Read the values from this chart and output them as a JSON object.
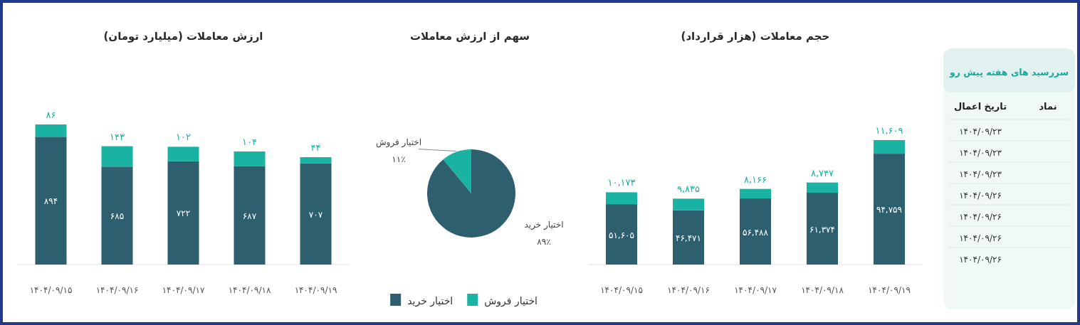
{
  "chart_data": [
    {
      "type": "other",
      "title": "سررسید های هفته پیش رو",
      "categories": [
        "نماد",
        "تاریخ اعمال"
      ],
      "annotations": [
        "۱۴۰۴/۰۹/۲۳",
        "۱۴۰۴/۰۹/۲۳",
        "۱۴۰۴/۰۹/۲۳",
        "۱۴۰۴/۰۹/۲۶",
        "۱۴۰۴/۰۹/۲۶",
        "۱۴۰۴/۰۹/۲۶",
        "۱۴۰۴/۰۹/۲۶"
      ]
    },
    {
      "type": "bar",
      "title": "حجم معاملات (هزار قرارداد)",
      "stacked": true,
      "categories": [
        "۱۴۰۴/۰۹/۱۵",
        "۱۴۰۴/۰۹/۱۶",
        "۱۴۰۴/۰۹/۱۷",
        "۱۴۰۴/۰۹/۱۸",
        "۱۴۰۴/۰۹/۱۹"
      ],
      "series": [
        {
          "color": "#2d5f6e",
          "values": [
            51605,
            46471,
            56488,
            61374,
            94759
          ],
          "value_labels": [
            "۵۱,۶۰۵",
            "۴۶,۴۷۱",
            "۵۶,۴۸۸",
            "۶۱,۳۷۴",
            "۹۴,۷۵۹"
          ]
        },
        {
          "color": "#1ab3a3",
          "values": [
            10173,
            9835,
            8166,
            8747,
            11609
          ],
          "value_labels": [
            "۱۰,۱۷۳",
            "۹,۸۳۵",
            "۸,۱۶۶",
            "۸,۷۴۷",
            "۱۱,۶۰۹"
          ]
        }
      ]
    },
    {
      "type": "pie",
      "title": "سهم از ارزش معاملات",
      "legend": "bottom",
      "categories": [
        "اختیار فروش",
        "اختیار خرید"
      ],
      "values": [
        11,
        89
      ],
      "colors": [
        "#1ab3a3",
        "#2d5f6e"
      ],
      "value_labels": [
        "۱۱٪",
        "۸۹٪"
      ]
    },
    {
      "type": "bar",
      "title": "ارزش معاملات (میلیارد تومان)",
      "stacked": true,
      "categories": [
        "۱۴۰۴/۰۹/۱۵",
        "۱۴۰۴/۰۹/۱۶",
        "۱۴۰۴/۰۹/۱۷",
        "۱۴۰۴/۰۹/۱۸",
        "۱۴۰۴/۰۹/۱۹"
      ],
      "series": [
        {
          "color": "#2d5f6e",
          "values": [
            894,
            685,
            722,
            687,
            707
          ],
          "value_labels": [
            "۸۹۴",
            "۶۸۵",
            "۷۲۲",
            "۶۸۷",
            "۷۰۷"
          ]
        },
        {
          "color": "#1ab3a3",
          "values": [
            86,
            143,
            102,
            104,
            44
          ],
          "value_labels": [
            "۸۶",
            "۱۴۳",
            "۱۰۲",
            "۱۰۴",
            "۴۴"
          ]
        }
      ]
    }
  ]
}
